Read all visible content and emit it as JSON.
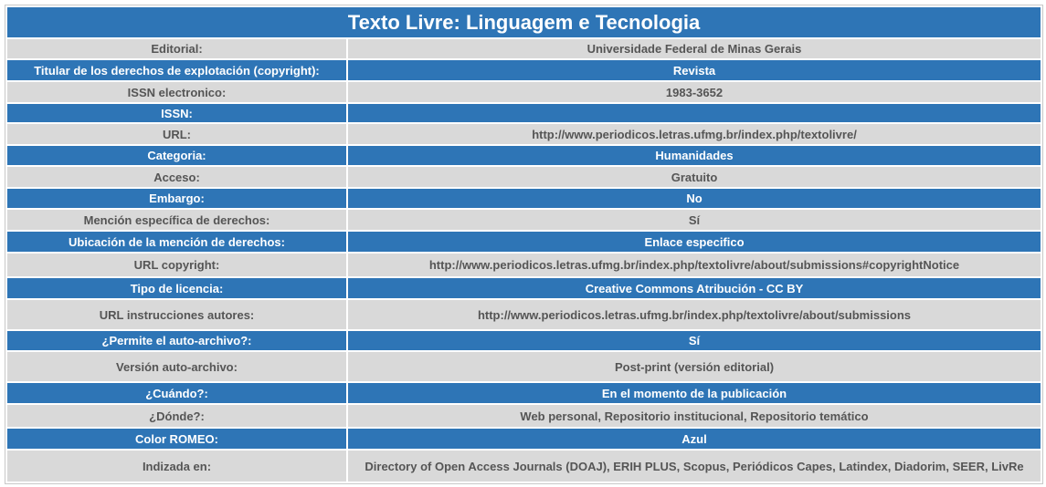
{
  "title": "Texto Livre: Linguagem e Tecnologia",
  "colors": {
    "header_blue": "#2e75b6",
    "row_grey": "#d9d9d9",
    "grey_text": "#555555",
    "blue_text": "#ffffff"
  },
  "rows": [
    {
      "label": "Editorial:",
      "value": "Universidade Federal de Minas Gerais",
      "style": "grey"
    },
    {
      "label": "Titular de los derechos de explotación (copyright):",
      "value": "Revista",
      "style": "blue"
    },
    {
      "label": "ISSN electronico:",
      "value": "1983-3652",
      "style": "grey"
    },
    {
      "label": "ISSN:",
      "value": "",
      "style": "blue"
    },
    {
      "label": "URL:",
      "value": "http://www.periodicos.letras.ufmg.br/index.php/textolivre/",
      "style": "grey"
    },
    {
      "label": "Categoria:",
      "value": "Humanidades",
      "style": "blue"
    },
    {
      "label": "Acceso:",
      "value": "Gratuito",
      "style": "grey"
    },
    {
      "label": "Embargo:",
      "value": "No",
      "style": "blue"
    },
    {
      "label": "Mención específica de derechos:",
      "value": "Sí",
      "style": "grey"
    },
    {
      "label": "Ubicación de la mención de derechos:",
      "value": "Enlace especifico",
      "style": "blue"
    },
    {
      "label": "URL copyright:",
      "value": "http://www.periodicos.letras.ufmg.br/index.php/textolivre/about/submissions#copyrightNotice",
      "style": "grey"
    },
    {
      "label": "Tipo de licencia:",
      "value": "Creative Commons Atribución - CC BY",
      "style": "blue"
    },
    {
      "label": "URL instrucciones autores:",
      "value": "http://www.periodicos.letras.ufmg.br/index.php/textolivre/about/submissions",
      "style": "grey"
    },
    {
      "label": "¿Permite el auto-archivo?:",
      "value": "Sí",
      "style": "blue"
    },
    {
      "label": "Versión auto-archivo:",
      "value": "Post-print (versión editorial)",
      "style": "grey"
    },
    {
      "label": "¿Cuándo?:",
      "value": "En el momento de la publicación",
      "style": "blue"
    },
    {
      "label": "¿Dónde?:",
      "value": "Web personal, Repositorio institucional, Repositorio temático",
      "style": "grey"
    },
    {
      "label": "Color ROMEO:",
      "value": "Azul",
      "style": "blue"
    },
    {
      "label": "Indizada en:",
      "value": "Directory of Open Access Journals (DOAJ), ERIH PLUS, Scopus, Periódicos Capes, Latindex, Diadorim, SEER, LivRe",
      "style": "grey"
    }
  ]
}
